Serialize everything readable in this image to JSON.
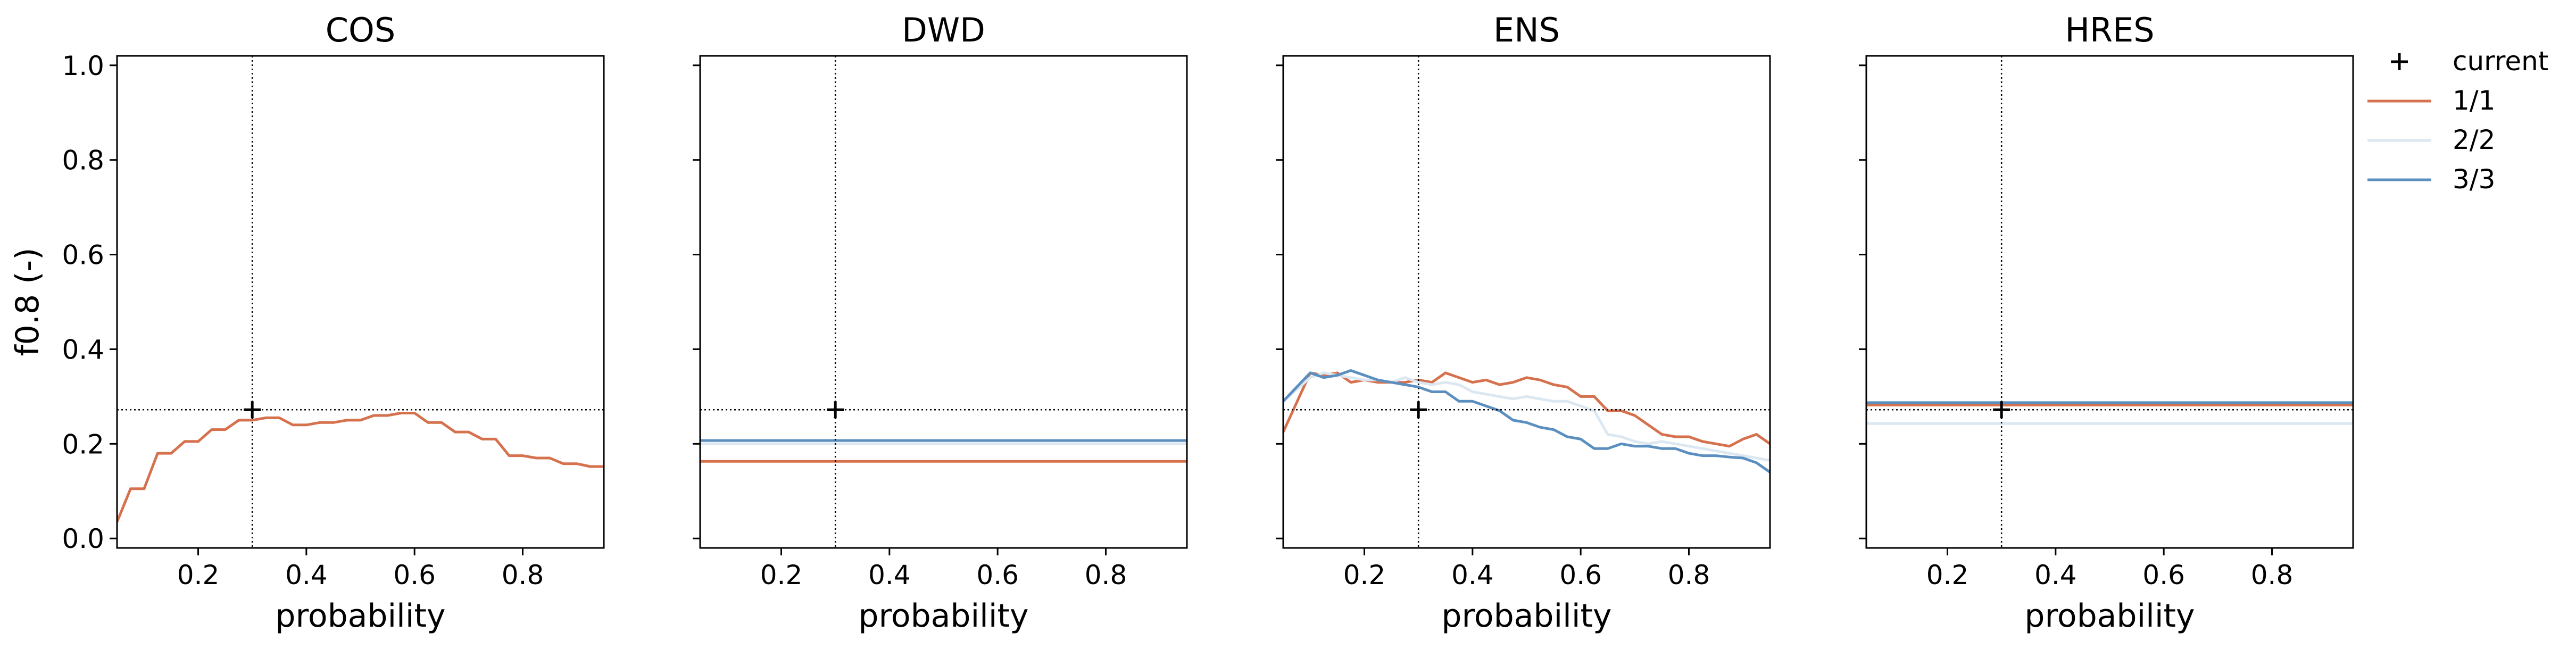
{
  "chart_data": {
    "type": "line",
    "ylabel": "f0.8 (-)",
    "xlabel": "probability",
    "xlim": [
      0.05,
      0.95
    ],
    "ylim": [
      -0.02,
      1.02
    ],
    "x_ticks": [
      "0.2",
      "0.4",
      "0.6",
      "0.8"
    ],
    "x_tick_values": [
      0.2,
      0.4,
      0.6,
      0.8
    ],
    "y_ticks": [
      "0.0",
      "0.2",
      "0.4",
      "0.6",
      "0.8",
      "1.0"
    ],
    "y_tick_values": [
      0.0,
      0.2,
      0.4,
      0.6,
      0.8,
      1.0
    ],
    "sharey": true,
    "grid": false,
    "legend_position": "outside-right",
    "legend": [
      {
        "label": "current",
        "kind": "marker",
        "color": "#000000"
      },
      {
        "label": "1/1",
        "kind": "line",
        "color": "#d6714e"
      },
      {
        "label": "2/2",
        "kind": "line",
        "color": "#dbe7f1"
      },
      {
        "label": "3/3",
        "kind": "line",
        "color": "#5b8fbf"
      }
    ],
    "panels": [
      {
        "title": "COS",
        "current": {
          "x": 0.3,
          "y": 0.272
        },
        "series": [
          {
            "name": "1/1",
            "color": "#d6714e",
            "x": [
              0.05,
              0.075,
              0.1,
              0.125,
              0.15,
              0.175,
              0.2,
              0.225,
              0.25,
              0.275,
              0.3,
              0.325,
              0.35,
              0.375,
              0.4,
              0.425,
              0.45,
              0.475,
              0.5,
              0.525,
              0.55,
              0.575,
              0.6,
              0.625,
              0.65,
              0.675,
              0.7,
              0.725,
              0.75,
              0.775,
              0.8,
              0.825,
              0.85,
              0.875,
              0.9,
              0.925,
              0.95
            ],
            "y": [
              0.035,
              0.105,
              0.105,
              0.18,
              0.18,
              0.205,
              0.205,
              0.23,
              0.23,
              0.25,
              0.25,
              0.255,
              0.255,
              0.24,
              0.24,
              0.245,
              0.245,
              0.25,
              0.25,
              0.26,
              0.26,
              0.265,
              0.265,
              0.245,
              0.245,
              0.225,
              0.225,
              0.21,
              0.21,
              0.175,
              0.175,
              0.17,
              0.17,
              0.158,
              0.158,
              0.152,
              0.152
            ]
          }
        ]
      },
      {
        "title": "DWD",
        "current": {
          "x": 0.3,
          "y": 0.272
        },
        "series": [
          {
            "name": "1/1",
            "color": "#d6714e",
            "x": [
              0.05,
              0.95
            ],
            "y": [
              0.163,
              0.163
            ]
          },
          {
            "name": "2/2",
            "color": "#dbe7f1",
            "x": [
              0.05,
              0.95
            ],
            "y": [
              0.2,
              0.2
            ]
          },
          {
            "name": "3/3",
            "color": "#5b8fbf",
            "x": [
              0.05,
              0.95
            ],
            "y": [
              0.207,
              0.207
            ]
          }
        ]
      },
      {
        "title": "ENS",
        "current": {
          "x": 0.3,
          "y": 0.272
        },
        "series": [
          {
            "name": "1/1",
            "color": "#d6714e",
            "x": [
              0.05,
              0.1,
              0.125,
              0.15,
              0.175,
              0.2,
              0.225,
              0.25,
              0.275,
              0.3,
              0.325,
              0.35,
              0.375,
              0.4,
              0.425,
              0.45,
              0.475,
              0.5,
              0.525,
              0.55,
              0.575,
              0.6,
              0.625,
              0.65,
              0.675,
              0.7,
              0.725,
              0.75,
              0.775,
              0.8,
              0.825,
              0.85,
              0.875,
              0.9,
              0.925,
              0.95
            ],
            "y": [
              0.225,
              0.35,
              0.345,
              0.35,
              0.33,
              0.335,
              0.33,
              0.33,
              0.33,
              0.335,
              0.33,
              0.35,
              0.34,
              0.33,
              0.335,
              0.325,
              0.33,
              0.34,
              0.335,
              0.325,
              0.32,
              0.3,
              0.3,
              0.27,
              0.27,
              0.26,
              0.24,
              0.22,
              0.215,
              0.215,
              0.205,
              0.2,
              0.195,
              0.21,
              0.22,
              0.2
            ]
          },
          {
            "name": "2/2",
            "color": "#dbe7f1",
            "x": [
              0.05,
              0.1,
              0.125,
              0.15,
              0.175,
              0.2,
              0.225,
              0.25,
              0.275,
              0.3,
              0.325,
              0.35,
              0.375,
              0.4,
              0.425,
              0.45,
              0.475,
              0.5,
              0.525,
              0.55,
              0.575,
              0.6,
              0.625,
              0.65,
              0.675,
              0.7,
              0.725,
              0.75,
              0.775,
              0.8,
              0.825,
              0.85,
              0.875,
              0.9,
              0.925,
              0.95
            ],
            "y": [
              0.29,
              0.34,
              0.35,
              0.345,
              0.34,
              0.335,
              0.335,
              0.33,
              0.34,
              0.33,
              0.325,
              0.33,
              0.325,
              0.31,
              0.305,
              0.3,
              0.295,
              0.3,
              0.295,
              0.29,
              0.29,
              0.28,
              0.27,
              0.22,
              0.215,
              0.205,
              0.2,
              0.205,
              0.2,
              0.195,
              0.19,
              0.185,
              0.18,
              0.175,
              0.17,
              0.165
            ]
          },
          {
            "name": "3/3",
            "color": "#5b8fbf",
            "x": [
              0.05,
              0.075,
              0.1,
              0.125,
              0.15,
              0.175,
              0.2,
              0.225,
              0.25,
              0.275,
              0.3,
              0.325,
              0.35,
              0.375,
              0.4,
              0.425,
              0.45,
              0.475,
              0.5,
              0.525,
              0.55,
              0.575,
              0.6,
              0.625,
              0.65,
              0.675,
              0.7,
              0.725,
              0.75,
              0.775,
              0.8,
              0.825,
              0.85,
              0.875,
              0.9,
              0.925,
              0.95
            ],
            "y": [
              0.29,
              0.32,
              0.35,
              0.34,
              0.345,
              0.355,
              0.345,
              0.335,
              0.33,
              0.325,
              0.32,
              0.31,
              0.31,
              0.29,
              0.29,
              0.28,
              0.27,
              0.25,
              0.245,
              0.235,
              0.23,
              0.215,
              0.21,
              0.19,
              0.19,
              0.2,
              0.195,
              0.195,
              0.19,
              0.19,
              0.18,
              0.175,
              0.175,
              0.172,
              0.17,
              0.16,
              0.14
            ]
          }
        ]
      },
      {
        "title": "HRES",
        "current": {
          "x": 0.3,
          "y": 0.272
        },
        "series": [
          {
            "name": "1/1",
            "color": "#d6714e",
            "x": [
              0.05,
              0.95
            ],
            "y": [
              0.282,
              0.282
            ]
          },
          {
            "name": "2/2",
            "color": "#dbe7f1",
            "x": [
              0.05,
              0.95
            ],
            "y": [
              0.243,
              0.243
            ]
          },
          {
            "name": "3/3",
            "color": "#5b8fbf",
            "x": [
              0.05,
              0.95
            ],
            "y": [
              0.287,
              0.287
            ]
          }
        ]
      }
    ]
  }
}
